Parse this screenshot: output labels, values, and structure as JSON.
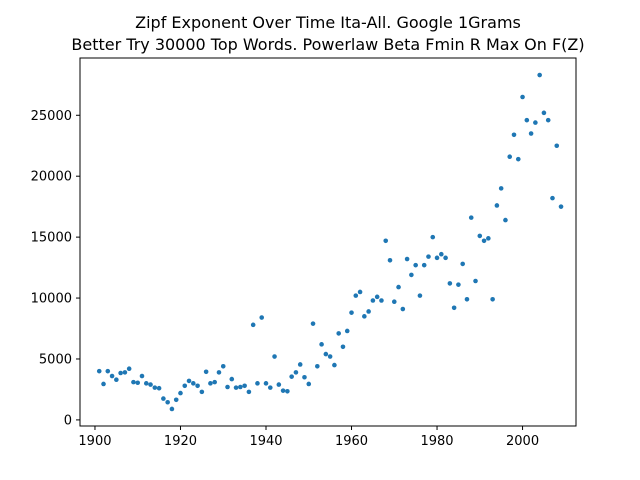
{
  "chart_data": {
    "type": "scatter",
    "title": "Zipf Exponent Over Time Ita-All. Google 1Grams",
    "subtitle": "Better Try 30000 Top Words. Powerlaw Beta Fmin R Max On F(Z)",
    "xlabel": "",
    "ylabel": "",
    "xlim": [
      1896.5,
      2012.5
    ],
    "ylim": [
      -500,
      29700
    ],
    "xticks": [
      1900,
      1920,
      1940,
      1960,
      1980,
      2000
    ],
    "yticks": [
      0,
      5000,
      10000,
      15000,
      20000,
      25000
    ],
    "grid": false,
    "legend": "none",
    "point_color": "#1f77b4",
    "points": [
      [
        1901,
        4000
      ],
      [
        1902,
        2950
      ],
      [
        1903,
        4000
      ],
      [
        1904,
        3600
      ],
      [
        1905,
        3300
      ],
      [
        1906,
        3850
      ],
      [
        1907,
        3900
      ],
      [
        1908,
        4200
      ],
      [
        1909,
        3100
      ],
      [
        1910,
        3050
      ],
      [
        1911,
        3600
      ],
      [
        1912,
        3000
      ],
      [
        1913,
        2900
      ],
      [
        1914,
        2650
      ],
      [
        1915,
        2600
      ],
      [
        1916,
        1750
      ],
      [
        1917,
        1450
      ],
      [
        1918,
        900
      ],
      [
        1919,
        1650
      ],
      [
        1920,
        2200
      ],
      [
        1921,
        2800
      ],
      [
        1922,
        3200
      ],
      [
        1923,
        3000
      ],
      [
        1924,
        2800
      ],
      [
        1925,
        2300
      ],
      [
        1926,
        3950
      ],
      [
        1927,
        3000
      ],
      [
        1928,
        3100
      ],
      [
        1929,
        3900
      ],
      [
        1930,
        4400
      ],
      [
        1931,
        2700
      ],
      [
        1932,
        3350
      ],
      [
        1933,
        2650
      ],
      [
        1934,
        2700
      ],
      [
        1935,
        2800
      ],
      [
        1936,
        2300
      ],
      [
        1937,
        7800
      ],
      [
        1938,
        3000
      ],
      [
        1939,
        8400
      ],
      [
        1940,
        3000
      ],
      [
        1941,
        2650
      ],
      [
        1942,
        5200
      ],
      [
        1943,
        2900
      ],
      [
        1944,
        2400
      ],
      [
        1945,
        2350
      ],
      [
        1946,
        3550
      ],
      [
        1947,
        3900
      ],
      [
        1948,
        4550
      ],
      [
        1949,
        3500
      ],
      [
        1950,
        2950
      ],
      [
        1951,
        7900
      ],
      [
        1952,
        4400
      ],
      [
        1953,
        6200
      ],
      [
        1954,
        5400
      ],
      [
        1955,
        5200
      ],
      [
        1956,
        4500
      ],
      [
        1957,
        7100
      ],
      [
        1958,
        6000
      ],
      [
        1959,
        7300
      ],
      [
        1960,
        8800
      ],
      [
        1961,
        10200
      ],
      [
        1962,
        10500
      ],
      [
        1963,
        8500
      ],
      [
        1964,
        8900
      ],
      [
        1965,
        9800
      ],
      [
        1966,
        10100
      ],
      [
        1967,
        9800
      ],
      [
        1968,
        14700
      ],
      [
        1969,
        13100
      ],
      [
        1970,
        9700
      ],
      [
        1971,
        10900
      ],
      [
        1972,
        9100
      ],
      [
        1973,
        13200
      ],
      [
        1974,
        11900
      ],
      [
        1975,
        12700
      ],
      [
        1976,
        10200
      ],
      [
        1977,
        12700
      ],
      [
        1978,
        13400
      ],
      [
        1979,
        15000
      ],
      [
        1980,
        13300
      ],
      [
        1981,
        13600
      ],
      [
        1982,
        13300
      ],
      [
        1983,
        11200
      ],
      [
        1984,
        9200
      ],
      [
        1985,
        11100
      ],
      [
        1986,
        12800
      ],
      [
        1987,
        9900
      ],
      [
        1988,
        16600
      ],
      [
        1989,
        11400
      ],
      [
        1990,
        15100
      ],
      [
        1991,
        14700
      ],
      [
        1992,
        14900
      ],
      [
        1993,
        9900
      ],
      [
        1994,
        17600
      ],
      [
        1995,
        19000
      ],
      [
        1996,
        16400
      ],
      [
        1997,
        21600
      ],
      [
        1998,
        23400
      ],
      [
        1999,
        21400
      ],
      [
        2000,
        26500
      ],
      [
        2001,
        24600
      ],
      [
        2002,
        23500
      ],
      [
        2003,
        24400
      ],
      [
        2004,
        28300
      ],
      [
        2005,
        25200
      ],
      [
        2006,
        24600
      ],
      [
        2007,
        18200
      ],
      [
        2008,
        22500
      ],
      [
        2009,
        17500
      ]
    ]
  }
}
